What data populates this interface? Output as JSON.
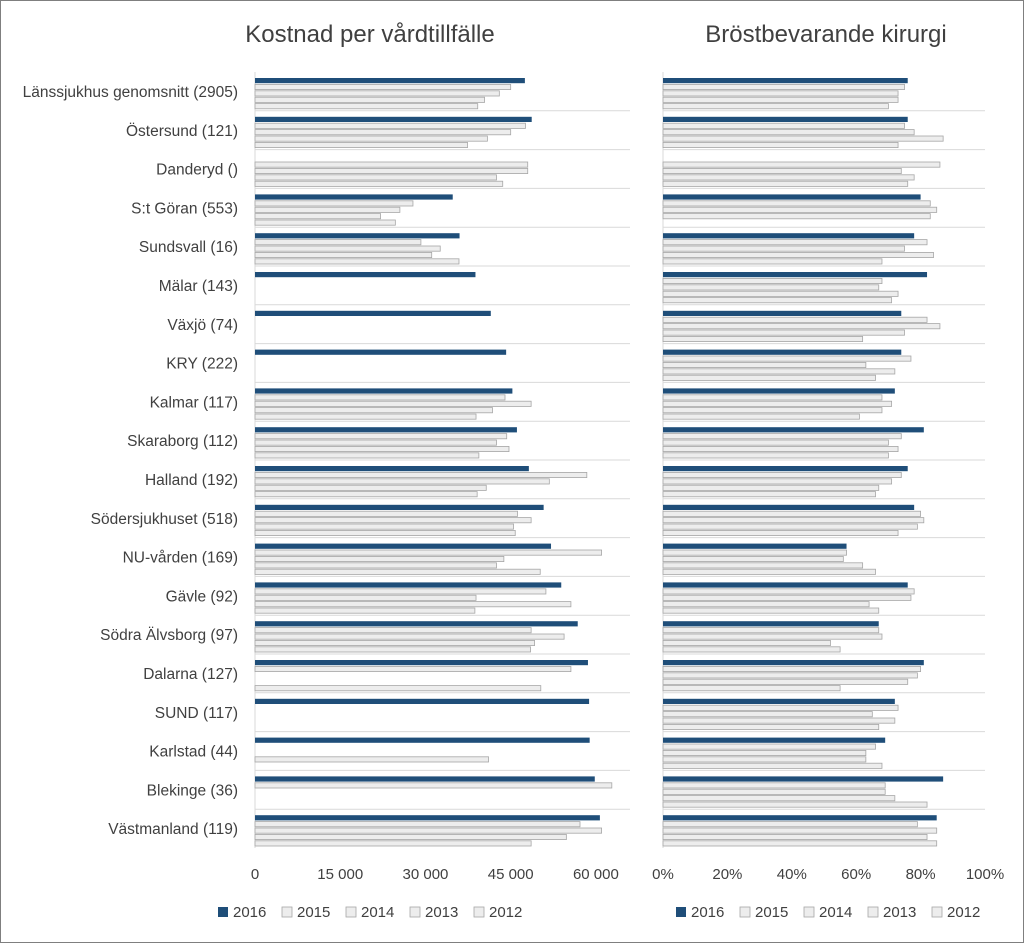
{
  "colors": {
    "y2016": "#1F4E79",
    "older_fill": "#EDEDED",
    "older_stroke": "#A6A6A6",
    "grid": "#D9D9D9",
    "text": "#404040"
  },
  "legend": {
    "items": [
      "2016",
      "2015",
      "2014",
      "2013",
      "2012"
    ]
  },
  "chart_data": [
    {
      "type": "bar",
      "orientation": "horizontal",
      "title": "Kostnad per vårdtillfälle",
      "xlim": [
        0,
        66000
      ],
      "xticks": [
        "0",
        "15 000",
        "30 000",
        "45 000",
        "60 000"
      ],
      "xtick_values": [
        0,
        15000,
        30000,
        45000,
        60000
      ],
      "grid": true,
      "legend_position": "bottom",
      "categories": [
        "Länssjukhus genomsnitt (2905)",
        "Östersund (121)",
        "Danderyd ()",
        "S:t Göran (553)",
        "Sundsvall (16)",
        "Mälar (143)",
        "Växjö (74)",
        "KRY (222)",
        "Kalmar (117)",
        "Skaraborg (112)",
        "Halland (192)",
        "Södersjukhuset (518)",
        "NU-vården (169)",
        "Gävle (92)",
        "Södra Älvsborg (97)",
        "Dalarna (127)",
        "SUND (117)",
        "Karlstad (44)",
        "Blekinge (36)",
        "Västmanland (119)"
      ],
      "series": [
        {
          "name": "2016",
          "values": [
            47500,
            48700,
            null,
            34800,
            36000,
            38800,
            41500,
            44200,
            45300,
            46100,
            48200,
            50800,
            52100,
            53900,
            56800,
            58600,
            58800,
            58900,
            59800,
            60700
          ]
        },
        {
          "name": "2015",
          "values": [
            45000,
            47600,
            48000,
            27800,
            29200,
            null,
            null,
            null,
            44000,
            44300,
            58400,
            46200,
            61000,
            51200,
            48600,
            55600,
            null,
            null,
            62800,
            57200
          ]
        },
        {
          "name": "2014",
          "values": [
            43000,
            45000,
            48000,
            25500,
            32600,
            null,
            null,
            null,
            48600,
            42500,
            51800,
            48600,
            43800,
            38900,
            54400,
            null,
            null,
            null,
            null,
            61000
          ]
        },
        {
          "name": "2013",
          "values": [
            40400,
            40900,
            42500,
            22100,
            31100,
            null,
            null,
            null,
            41800,
            44700,
            40700,
            45500,
            42500,
            55600,
            49200,
            null,
            null,
            41100,
            null,
            54800
          ]
        },
        {
          "name": "2012",
          "values": [
            39200,
            37400,
            43600,
            24700,
            35900,
            null,
            null,
            null,
            38900,
            39400,
            39100,
            45800,
            50200,
            38700,
            48500,
            50300,
            null,
            null,
            null,
            48600
          ]
        }
      ]
    },
    {
      "type": "bar",
      "orientation": "horizontal",
      "title": "Bröstbevarande kirurgi",
      "xlim": [
        0,
        100
      ],
      "xticks": [
        "0%",
        "20%",
        "40%",
        "60%",
        "80%",
        "100%"
      ],
      "xtick_values": [
        0,
        20,
        40,
        60,
        80,
        100
      ],
      "unit": "%",
      "grid": true,
      "legend_position": "bottom",
      "categories": [
        "Länssjukhus genomsnitt (2905)",
        "Östersund (121)",
        "Danderyd ()",
        "S:t Göran (553)",
        "Sundsvall (16)",
        "Mälar (143)",
        "Växjö (74)",
        "KRY (222)",
        "Kalmar (117)",
        "Skaraborg (112)",
        "Halland (192)",
        "Södersjukhuset (518)",
        "NU-vården (169)",
        "Gävle (92)",
        "Södra Älvsborg (97)",
        "Dalarna (127)",
        "SUND (117)",
        "Karlstad (44)",
        "Blekinge (36)",
        "Västmanland (119)"
      ],
      "series": [
        {
          "name": "2016",
          "values": [
            76,
            76,
            null,
            80,
            78,
            82,
            74,
            74,
            72,
            81,
            76,
            78,
            57,
            76,
            67,
            81,
            72,
            69,
            87,
            85
          ]
        },
        {
          "name": "2015",
          "values": [
            75,
            75,
            86,
            83,
            82,
            68,
            82,
            77,
            68,
            74,
            74,
            80,
            57,
            78,
            67,
            80,
            73,
            66,
            69,
            79
          ]
        },
        {
          "name": "2014",
          "values": [
            73,
            78,
            74,
            85,
            75,
            67,
            86,
            63,
            71,
            70,
            71,
            81,
            56,
            77,
            68,
            79,
            65,
            63,
            69,
            85
          ]
        },
        {
          "name": "2013",
          "values": [
            73,
            87,
            78,
            83,
            84,
            73,
            75,
            72,
            68,
            73,
            67,
            79,
            62,
            64,
            52,
            76,
            72,
            63,
            72,
            82
          ]
        },
        {
          "name": "2012",
          "values": [
            70,
            73,
            76,
            null,
            68,
            71,
            62,
            66,
            61,
            70,
            66,
            73,
            66,
            67,
            55,
            55,
            67,
            68,
            82,
            85
          ]
        }
      ]
    }
  ]
}
